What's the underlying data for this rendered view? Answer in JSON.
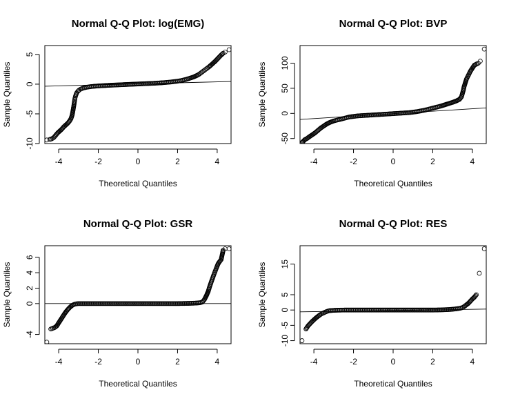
{
  "chart_data": [
    {
      "type": "scatter",
      "title": "Normal Q-Q Plot: log(EMG)",
      "xlabel": "Theoretical Quantiles",
      "ylabel": "Sample Quantiles",
      "xlim": [
        -4.7,
        4.7
      ],
      "ylim": [
        -10,
        6.5
      ],
      "xticks": [
        -4,
        -2,
        0,
        2,
        4
      ],
      "yticks": [
        -10,
        -5,
        0,
        5
      ],
      "ref_line": {
        "x": [
          -4.7,
          4.7
        ],
        "y": [
          -0.35,
          0.45
        ]
      },
      "points": {
        "x": [
          -4.6,
          -4.45,
          -4.35,
          -4.25,
          -4.15,
          -4.05,
          -3.95,
          -3.85,
          -3.75,
          -3.65,
          -3.55,
          -3.45,
          -3.38,
          -3.32,
          -3.28,
          -3.25,
          -3.22,
          -3.2,
          -3.18,
          -3.15,
          -3.12,
          -3.08,
          -3.03,
          -2.97,
          -2.9,
          -2.8,
          -2.7,
          -2.55,
          -2.4,
          -2.2,
          -2.0,
          -1.8,
          -1.6,
          -1.4,
          -1.2,
          -1.0,
          -0.8,
          -0.6,
          -0.4,
          -0.2,
          0.0,
          0.2,
          0.4,
          0.6,
          0.8,
          1.0,
          1.2,
          1.4,
          1.6,
          1.8,
          2.0,
          2.2,
          2.4,
          2.6,
          2.8,
          3.0,
          3.1,
          3.2,
          3.3,
          3.4,
          3.5,
          3.6,
          3.7,
          3.8,
          3.9,
          4.0,
          4.1,
          4.2,
          4.3,
          4.4,
          4.6
        ],
        "y": [
          -9.4,
          -9.3,
          -9.2,
          -9.0,
          -8.6,
          -8.2,
          -7.9,
          -7.6,
          -7.2,
          -6.9,
          -6.6,
          -6.2,
          -5.8,
          -5.2,
          -4.5,
          -3.9,
          -3.3,
          -2.8,
          -2.4,
          -2.0,
          -1.7,
          -1.4,
          -1.2,
          -1.0,
          -0.85,
          -0.7,
          -0.6,
          -0.5,
          -0.42,
          -0.35,
          -0.3,
          -0.26,
          -0.22,
          -0.18,
          -0.15,
          -0.12,
          -0.09,
          -0.06,
          -0.03,
          0.0,
          0.03,
          0.06,
          0.09,
          0.12,
          0.15,
          0.19,
          0.23,
          0.28,
          0.34,
          0.42,
          0.5,
          0.62,
          0.78,
          0.98,
          1.2,
          1.5,
          1.7,
          1.95,
          2.2,
          2.45,
          2.7,
          2.95,
          3.25,
          3.55,
          3.85,
          4.2,
          4.55,
          4.9,
          5.2,
          5.4,
          5.8
        ]
      }
    },
    {
      "type": "scatter",
      "title": "Normal Q-Q Plot: BVP",
      "xlabel": "Theoretical Quantiles",
      "ylabel": "Sample Quantiles",
      "xlim": [
        -4.7,
        4.7
      ],
      "ylim": [
        -60,
        135
      ],
      "xticks": [
        -4,
        -2,
        0,
        2,
        4
      ],
      "yticks": [
        -50,
        0,
        50,
        100
      ],
      "ref_line": {
        "x": [
          -4.7,
          4.7
        ],
        "y": [
          -12,
          11
        ]
      },
      "points": {
        "x": [
          -4.6,
          -4.45,
          -4.35,
          -4.25,
          -4.1,
          -3.95,
          -3.8,
          -3.65,
          -3.5,
          -3.35,
          -3.2,
          -3.0,
          -2.8,
          -2.6,
          -2.4,
          -2.2,
          -2.0,
          -1.8,
          -1.6,
          -1.4,
          -1.2,
          -1.0,
          -0.8,
          -0.6,
          -0.4,
          -0.2,
          0.0,
          0.2,
          0.4,
          0.6,
          0.8,
          1.0,
          1.2,
          1.4,
          1.6,
          1.8,
          2.0,
          2.2,
          2.4,
          2.6,
          2.8,
          3.0,
          3.2,
          3.35,
          3.45,
          3.5,
          3.55,
          3.58,
          3.62,
          3.66,
          3.7,
          3.75,
          3.8,
          3.85,
          3.9,
          3.95,
          4.0,
          4.05,
          4.1,
          4.2,
          4.3,
          4.4,
          4.6
        ],
        "y": [
          -58,
          -52,
          -50,
          -47,
          -43,
          -39,
          -34,
          -29,
          -25,
          -21,
          -18,
          -15,
          -13,
          -11,
          -9,
          -7,
          -6,
          -5,
          -4.5,
          -4,
          -3.5,
          -3,
          -2.5,
          -2,
          -1.5,
          -1,
          -0.5,
          0,
          0.5,
          1,
          1.5,
          2.5,
          3.5,
          5,
          6.5,
          8.5,
          10.5,
          12.5,
          14.5,
          17,
          19.5,
          22,
          25,
          28,
          33,
          40,
          47,
          53,
          58,
          63,
          68,
          72,
          76,
          80,
          84,
          87,
          90,
          93,
          96,
          98,
          100,
          104,
          128
        ]
      }
    },
    {
      "type": "scatter",
      "title": "Normal Q-Q Plot: GSR",
      "xlabel": "Theoretical Quantiles",
      "ylabel": "Sample Quantiles",
      "xlim": [
        -4.7,
        4.7
      ],
      "ylim": [
        -5.2,
        7.5
      ],
      "xticks": [
        -4,
        -2,
        0,
        2,
        4
      ],
      "yticks": [
        -4,
        0,
        2,
        4,
        6
      ],
      "ref_line": {
        "x": [
          -4.7,
          4.7
        ],
        "y": [
          0,
          0
        ]
      },
      "points": {
        "x": [
          -4.6,
          -4.4,
          -4.3,
          -4.2,
          -4.1,
          -4.0,
          -3.9,
          -3.8,
          -3.7,
          -3.6,
          -3.5,
          -3.4,
          -3.3,
          -3.2,
          -3.1,
          -3.0,
          -2.8,
          -2.6,
          -2.4,
          -2.2,
          -2.0,
          -1.8,
          -1.6,
          -1.4,
          -1.2,
          -1.0,
          -0.8,
          -0.6,
          -0.4,
          -0.2,
          0.0,
          0.2,
          0.4,
          0.6,
          0.8,
          1.0,
          1.2,
          1.4,
          1.6,
          1.8,
          2.0,
          2.2,
          2.4,
          2.6,
          2.8,
          3.0,
          3.15,
          3.25,
          3.35,
          3.45,
          3.55,
          3.62,
          3.7,
          3.77,
          3.84,
          3.9,
          3.96,
          4.02,
          4.08,
          4.14,
          4.2,
          4.3,
          4.4,
          4.6
        ],
        "y": [
          -5.0,
          -3.3,
          -3.2,
          -3.1,
          -2.9,
          -2.5,
          -2.1,
          -1.7,
          -1.3,
          -0.95,
          -0.65,
          -0.4,
          -0.2,
          -0.08,
          -0.03,
          0.0,
          0.0,
          0.0,
          0.0,
          0.0,
          0.0,
          0.0,
          0.0,
          0.0,
          0.0,
          0.0,
          0.0,
          0.0,
          0.0,
          0.0,
          0.0,
          0.0,
          0.0,
          0.0,
          0.0,
          0.0,
          0.0,
          0.0,
          0.0,
          0.0,
          0.0,
          0.01,
          0.02,
          0.03,
          0.05,
          0.08,
          0.12,
          0.2,
          0.5,
          1.0,
          1.6,
          2.2,
          2.8,
          3.3,
          3.8,
          4.2,
          4.6,
          5.0,
          5.3,
          5.5,
          5.7,
          6.9,
          7.1,
          7.1
        ]
      }
    },
    {
      "type": "scatter",
      "title": "Normal Q-Q Plot: RES",
      "xlabel": "Theoretical Quantiles",
      "ylabel": "Sample Quantiles",
      "xlim": [
        -4.7,
        4.7
      ],
      "ylim": [
        -11,
        21
      ],
      "xticks": [
        -4,
        -2,
        0,
        2,
        4
      ],
      "yticks": [
        -10,
        -5,
        0,
        5,
        15
      ],
      "ref_line": {
        "x": [
          -4.7,
          4.7
        ],
        "y": [
          -0.6,
          0.3
        ]
      },
      "points": {
        "x": [
          -4.6,
          -4.4,
          -4.3,
          -4.2,
          -4.1,
          -4.0,
          -3.9,
          -3.8,
          -3.7,
          -3.6,
          -3.5,
          -3.4,
          -3.3,
          -3.2,
          -3.0,
          -2.8,
          -2.6,
          -2.4,
          -2.2,
          -2.0,
          -1.8,
          -1.6,
          -1.4,
          -1.2,
          -1.0,
          -0.8,
          -0.6,
          -0.4,
          -0.2,
          0.0,
          0.2,
          0.4,
          0.6,
          0.8,
          1.0,
          1.2,
          1.4,
          1.6,
          1.8,
          2.0,
          2.2,
          2.4,
          2.6,
          2.8,
          3.0,
          3.2,
          3.4,
          3.5,
          3.6,
          3.7,
          3.8,
          3.9,
          4.0,
          4.1,
          4.2,
          4.35,
          4.6
        ],
        "y": [
          -10,
          -6.2,
          -5.2,
          -4.5,
          -3.8,
          -3.2,
          -2.6,
          -2.1,
          -1.6,
          -1.2,
          -0.9,
          -0.6,
          -0.35,
          -0.2,
          -0.1,
          -0.05,
          -0.02,
          0.0,
          0.0,
          0.0,
          0.0,
          0.0,
          0.0,
          0.0,
          0.0,
          0.0,
          0.0,
          0.0,
          0.0,
          0.0,
          0.0,
          0.0,
          0.0,
          0.0,
          0.0,
          0.0,
          0.0,
          0.0,
          0.0,
          0.0,
          0.02,
          0.05,
          0.1,
          0.15,
          0.25,
          0.4,
          0.6,
          0.8,
          1.2,
          1.7,
          2.2,
          2.9,
          3.6,
          4.2,
          5.0,
          12.0,
          20.0
        ]
      }
    }
  ]
}
